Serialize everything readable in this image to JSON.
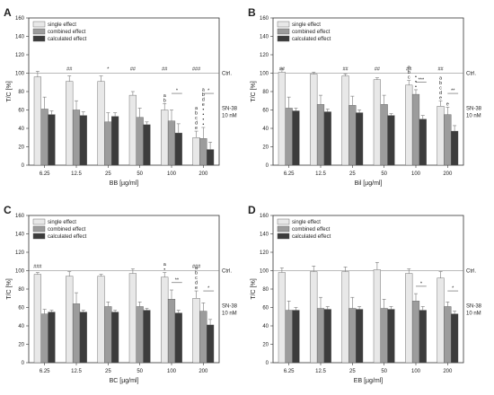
{
  "chart_data": [
    {
      "type": "bar",
      "panel": "A",
      "categories": [
        "6.25",
        "12.5",
        "25",
        "50",
        "100",
        "200"
      ],
      "xlabel": "BB [µg/ml]",
      "ylabel": "T/C [%]",
      "ylim": [
        0,
        160
      ],
      "yticks": [
        0,
        20,
        40,
        60,
        80,
        100,
        120,
        140,
        160
      ],
      "reference": {
        "label": "Ctrl.",
        "value": 100
      },
      "side_label": [
        "SN-38",
        "10 nM"
      ],
      "series": [
        {
          "name": "single effect",
          "color": "#e8e8e8",
          "values": [
            96,
            91,
            91,
            76,
            60,
            30
          ],
          "errors": [
            6,
            6,
            6,
            4,
            7,
            7
          ]
        },
        {
          "name": "combined effect",
          "color": "#9c9c9c",
          "values": [
            61,
            60,
            47,
            52,
            48,
            29
          ],
          "errors": [
            13,
            10,
            10,
            10,
            12,
            12
          ]
        },
        {
          "name": "calculated effect",
          "color": "#3c3c3c",
          "values": [
            55,
            54,
            53,
            44,
            35,
            17
          ],
          "errors": [
            4,
            4,
            4,
            3,
            10,
            8
          ]
        }
      ],
      "annotations": [
        {
          "group": 1,
          "bar": 0,
          "text": "##"
        },
        {
          "group": 3,
          "bar": 0,
          "text": "##"
        },
        {
          "group": 4,
          "bar": 0,
          "text": "##"
        },
        {
          "group": 5,
          "bar": 0,
          "text": "###"
        },
        {
          "group": 2,
          "bar": 1,
          "text": "*"
        },
        {
          "group": 4,
          "bar": 0,
          "stack": [
            "a",
            "b"
          ]
        },
        {
          "group": 5,
          "bar": 0,
          "stack": [
            "a",
            "b",
            "c",
            "d",
            "e"
          ]
        },
        {
          "group": 5,
          "bar": 1,
          "stack": [
            "a",
            "b",
            "d",
            "e",
            "•",
            "•",
            "•",
            "•"
          ]
        },
        {
          "group": 4,
          "bar": 1,
          "bracket": "*"
        },
        {
          "group": 5,
          "bar": 1,
          "bracket": "*"
        }
      ]
    },
    {
      "type": "bar",
      "panel": "B",
      "categories": [
        "6.25",
        "12.5",
        "25",
        "50",
        "100",
        "200"
      ],
      "xlabel": "Bil [µg/ml]",
      "ylabel": "T/C [%]",
      "ylim": [
        0,
        160
      ],
      "yticks": [
        0,
        20,
        40,
        60,
        80,
        100,
        120,
        140,
        160
      ],
      "reference": {
        "label": "Ctrl.",
        "value": 100
      },
      "side_label": [
        "SN-38",
        "10 nM"
      ],
      "series": [
        {
          "name": "single effect",
          "color": "#e8e8e8",
          "values": [
            101,
            99,
            97,
            93,
            87,
            64
          ],
          "errors": [
            4,
            2,
            2,
            2,
            5,
            6
          ]
        },
        {
          "name": "combined effect",
          "color": "#9c9c9c",
          "values": [
            62,
            66,
            65,
            66,
            77,
            55
          ],
          "errors": [
            12,
            10,
            10,
            10,
            5,
            8
          ]
        },
        {
          "name": "calculated effect",
          "color": "#3c3c3c",
          "values": [
            59,
            58,
            57,
            54,
            50,
            37
          ],
          "errors": [
            3,
            3,
            3,
            2,
            4,
            6
          ]
        }
      ],
      "annotations": [
        {
          "group": 0,
          "bar": 0,
          "text": "##"
        },
        {
          "group": 2,
          "bar": 0,
          "text": "##"
        },
        {
          "group": 3,
          "bar": 0,
          "text": "##"
        },
        {
          "group": 4,
          "bar": 0,
          "text": "##"
        },
        {
          "group": 5,
          "bar": 0,
          "text": "##"
        },
        {
          "group": 4,
          "bar": 0,
          "stack": [
            "a",
            "b",
            "c"
          ]
        },
        {
          "group": 4,
          "bar": 1,
          "stack": [
            "•",
            "•",
            "•"
          ]
        },
        {
          "group": 5,
          "bar": 0,
          "stack": [
            "a",
            "b",
            "c",
            "d",
            "e"
          ]
        },
        {
          "group": 5,
          "bar": 1,
          "stack": [
            "e"
          ]
        },
        {
          "group": 4,
          "bar": 1,
          "bracket": "***"
        },
        {
          "group": 5,
          "bar": 1,
          "bracket": "**"
        }
      ]
    },
    {
      "type": "bar",
      "panel": "C",
      "categories": [
        "6.25",
        "12.5",
        "25",
        "50",
        "100",
        "200"
      ],
      "xlabel": "BC [µg/ml]",
      "ylabel": "T/C [%]",
      "ylim": [
        0,
        160
      ],
      "yticks": [
        0,
        20,
        40,
        60,
        80,
        100,
        120,
        140,
        160
      ],
      "reference": {
        "label": "Ctrl.",
        "value": 100
      },
      "side_label": [
        "SN-38",
        "10 nM"
      ],
      "series": [
        {
          "name": "single effect",
          "color": "#e8e8e8",
          "values": [
            96,
            94,
            94,
            97,
            93,
            70
          ],
          "errors": [
            2,
            5,
            2,
            5,
            5,
            8
          ]
        },
        {
          "name": "combined effect",
          "color": "#9c9c9c",
          "values": [
            53,
            64,
            61,
            61,
            69,
            56
          ],
          "errors": [
            5,
            12,
            5,
            5,
            10,
            9
          ]
        },
        {
          "name": "calculated effect",
          "color": "#3c3c3c",
          "values": [
            55,
            55,
            55,
            57,
            54,
            41
          ],
          "errors": [
            2,
            2,
            2,
            2,
            3,
            6
          ]
        }
      ],
      "annotations": [
        {
          "group": 0,
          "bar": 0,
          "text": "###"
        },
        {
          "group": 5,
          "bar": 0,
          "text": "###"
        },
        {
          "group": 4,
          "bar": 0,
          "stack": [
            "a",
            "•"
          ]
        },
        {
          "group": 5,
          "bar": 0,
          "stack": [
            "a",
            "b",
            "c",
            "d",
            "e"
          ]
        },
        {
          "group": 4,
          "bar": 1,
          "bracket": "**"
        },
        {
          "group": 5,
          "bar": 1,
          "bracket": "*"
        }
      ]
    },
    {
      "type": "bar",
      "panel": "D",
      "categories": [
        "6.25",
        "12.5",
        "25",
        "50",
        "100",
        "200"
      ],
      "xlabel": "EB [µg/ml]",
      "ylabel": "T/C [%]",
      "ylim": [
        0,
        160
      ],
      "yticks": [
        0,
        20,
        40,
        60,
        80,
        100,
        120,
        140,
        160
      ],
      "reference": {
        "label": "Ctrl.",
        "value": 100
      },
      "side_label": [
        "SN-38",
        "10 nM"
      ],
      "series": [
        {
          "name": "single effect",
          "color": "#e8e8e8",
          "values": [
            98,
            99,
            99,
            101,
            97,
            92
          ],
          "errors": [
            5,
            6,
            5,
            8,
            5,
            7
          ]
        },
        {
          "name": "combined effect",
          "color": "#9c9c9c",
          "values": [
            57,
            59,
            59,
            59,
            67,
            61
          ],
          "errors": [
            10,
            12,
            12,
            10,
            8,
            5
          ]
        },
        {
          "name": "calculated effect",
          "color": "#3c3c3c",
          "values": [
            57,
            58,
            58,
            58,
            57,
            53
          ],
          "errors": [
            3,
            3,
            3,
            3,
            4,
            3
          ]
        }
      ],
      "annotations": [
        {
          "group": 4,
          "bar": 1,
          "bracket": "*"
        },
        {
          "group": 5,
          "bar": 1,
          "bracket": "*"
        }
      ]
    }
  ]
}
